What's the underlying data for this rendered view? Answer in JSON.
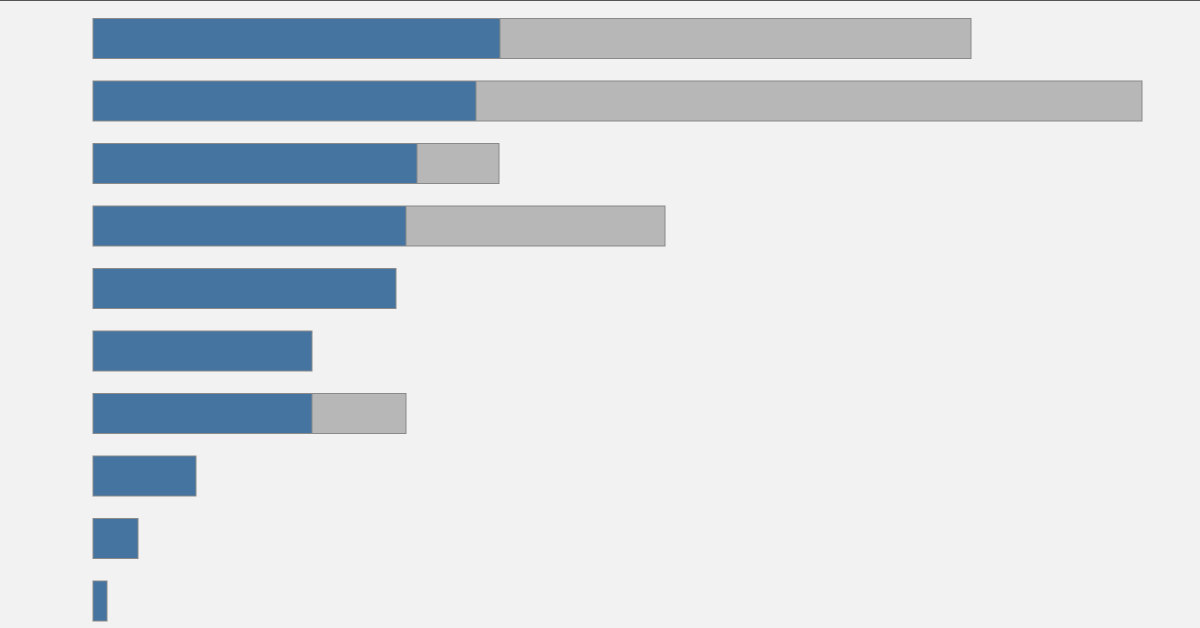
{
  "chart_data": {
    "type": "bar",
    "orientation": "horizontal",
    "stacked": true,
    "title": "",
    "xlabel": "",
    "ylabel": "",
    "xlim": [
      0,
      1107
    ],
    "grid": false,
    "legend": "none",
    "categories": [
      "",
      "",
      "",
      "",
      "",
      "",
      "",
      "",
      "",
      ""
    ],
    "series": [
      {
        "color": "#44749f",
        "values": [
          407,
          383,
          324,
          313,
          303,
          219,
          219,
          103,
          45,
          14
        ]
      },
      {
        "color": "#b7b7b7",
        "values": [
          471,
          666,
          82,
          259,
          0,
          0,
          94,
          0,
          0,
          0
        ]
      }
    ],
    "background": "#f2f2f2"
  }
}
